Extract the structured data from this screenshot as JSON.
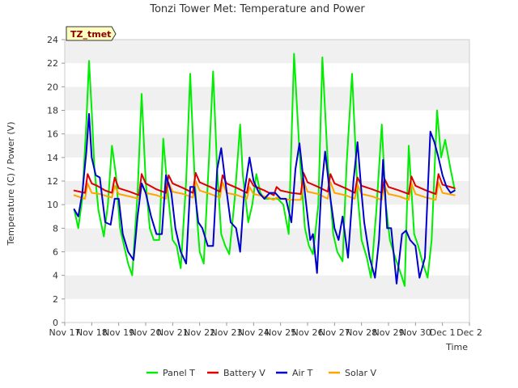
{
  "chart_data": {
    "type": "line",
    "title": "Tonzi Tower Met: Temperature and Power",
    "xlabel": "Time",
    "ylabel": "Temperature (C) / Power (V)",
    "ylim": [
      0,
      24
    ],
    "yticks": [
      "0",
      "2",
      "4",
      "6",
      "8",
      "10",
      "12",
      "14",
      "16",
      "18",
      "20",
      "22",
      "24"
    ],
    "xlim": [
      0,
      15
    ],
    "xticks": [
      "Nov 17",
      "Nov 18",
      "Nov 19",
      "Nov 20",
      "Nov 21",
      "Nov 22",
      "Nov 23",
      "Nov 24",
      "Nov 25",
      "Nov 26",
      "Nov 27",
      "Nov 28",
      "Nov 29",
      "Nov 30",
      "Dec 1",
      "Dec 2"
    ],
    "grid": "horizontal bands",
    "legend_position": "bottom",
    "tag": "TZ_tmet",
    "series": [
      {
        "name": "Panel T",
        "color": "#00ee00",
        "x": [
          0.35,
          0.5,
          0.65,
          0.8,
          0.9,
          1.0,
          1.1,
          1.25,
          1.45,
          1.6,
          1.75,
          1.9,
          2.05,
          2.2,
          2.35,
          2.5,
          2.7,
          2.85,
          3.0,
          3.15,
          3.3,
          3.5,
          3.65,
          3.8,
          4.0,
          4.15,
          4.3,
          4.5,
          4.65,
          4.8,
          4.9,
          5.0,
          5.15,
          5.35,
          5.5,
          5.65,
          5.8,
          5.95,
          6.1,
          6.3,
          6.5,
          6.6,
          6.8,
          6.95,
          7.1,
          7.25,
          7.4,
          7.6,
          7.75,
          7.9,
          8.1,
          8.3,
          8.5,
          8.7,
          8.9,
          9.05,
          9.2,
          9.4,
          9.55,
          9.75,
          9.95,
          10.1,
          10.3,
          10.45,
          10.65,
          10.85,
          11.0,
          11.2,
          11.35,
          11.55,
          11.75,
          11.9,
          12.05,
          12.25,
          12.45,
          12.6,
          12.75,
          12.95,
          13.1,
          13.25,
          13.45,
          13.6,
          13.8,
          13.95,
          14.1,
          14.3,
          14.45
        ],
        "y": [
          9.6,
          8.0,
          10.5,
          17.0,
          22.2,
          18.0,
          13.0,
          9.5,
          7.3,
          10.0,
          15.0,
          12.5,
          8.0,
          6.5,
          5.0,
          4.0,
          11.0,
          19.4,
          12.0,
          8.0,
          7.0,
          7.0,
          15.6,
          11.5,
          7.0,
          6.5,
          4.6,
          12.0,
          21.1,
          13.0,
          9.0,
          6.0,
          5.0,
          14.0,
          21.3,
          13.0,
          7.5,
          6.5,
          5.8,
          10.5,
          16.8,
          12.5,
          8.5,
          10.0,
          12.6,
          11.0,
          10.5,
          10.5,
          10.5,
          10.5,
          10.0,
          7.5,
          22.8,
          14.5,
          8.0,
          6.5,
          5.8,
          10.0,
          22.5,
          13.5,
          7.5,
          6.0,
          5.2,
          13.5,
          21.1,
          11.0,
          7.0,
          5.5,
          3.8,
          9.5,
          16.8,
          10.0,
          7.0,
          5.5,
          4.2,
          3.1,
          15.0,
          7.5,
          6.5,
          5.2,
          3.8,
          7.0,
          18.0,
          14.0,
          15.5,
          13.0,
          11.3
        ]
      },
      {
        "name": "Battery V",
        "color": "#dd0000",
        "x": [
          0.35,
          0.75,
          0.85,
          1.0,
          1.2,
          1.5,
          1.75,
          1.85,
          2.0,
          2.4,
          2.75,
          2.85,
          3.0,
          3.4,
          3.75,
          3.85,
          4.0,
          4.4,
          4.75,
          4.85,
          5.0,
          5.4,
          5.75,
          5.85,
          6.0,
          6.4,
          6.75,
          6.85,
          7.0,
          7.4,
          7.75,
          7.85,
          8.0,
          8.4,
          8.75,
          8.85,
          9.0,
          9.4,
          9.75,
          9.85,
          10.0,
          10.4,
          10.75,
          10.85,
          11.0,
          11.4,
          11.75,
          11.85,
          12.0,
          12.4,
          12.75,
          12.85,
          13.0,
          13.4,
          13.75,
          13.85,
          14.0,
          14.45
        ],
        "y": [
          11.2,
          11.0,
          12.6,
          11.8,
          11.6,
          11.2,
          11.0,
          12.3,
          11.4,
          11.1,
          10.8,
          12.6,
          11.8,
          11.3,
          11.0,
          12.5,
          11.8,
          11.4,
          11.0,
          12.7,
          11.9,
          11.5,
          11.1,
          12.5,
          11.8,
          11.4,
          11.0,
          12.2,
          11.6,
          11.2,
          10.8,
          11.5,
          11.2,
          11.0,
          10.9,
          12.7,
          11.9,
          11.5,
          11.1,
          12.6,
          11.8,
          11.4,
          11.0,
          12.3,
          11.6,
          11.3,
          11.0,
          12.2,
          11.5,
          11.2,
          10.9,
          12.4,
          11.6,
          11.2,
          10.9,
          12.6,
          11.7,
          11.4
        ]
      },
      {
        "name": "Air T",
        "color": "#0000cc",
        "x": [
          0.35,
          0.5,
          0.65,
          0.8,
          0.9,
          1.0,
          1.15,
          1.3,
          1.5,
          1.7,
          1.85,
          2.0,
          2.15,
          2.35,
          2.55,
          2.7,
          2.85,
          3.0,
          3.2,
          3.4,
          3.6,
          3.75,
          3.95,
          4.1,
          4.3,
          4.5,
          4.65,
          4.8,
          4.95,
          5.1,
          5.3,
          5.5,
          5.65,
          5.8,
          5.95,
          6.15,
          6.35,
          6.5,
          6.65,
          6.85,
          7.0,
          7.2,
          7.4,
          7.6,
          7.8,
          8.0,
          8.2,
          8.4,
          8.55,
          8.7,
          8.9,
          9.1,
          9.2,
          9.35,
          9.5,
          9.65,
          9.85,
          10.0,
          10.15,
          10.3,
          10.5,
          10.7,
          10.85,
          11.0,
          11.1,
          11.3,
          11.5,
          11.65,
          11.8,
          11.95,
          12.1,
          12.3,
          12.5,
          12.65,
          12.8,
          13.0,
          13.15,
          13.35,
          13.55,
          13.7,
          13.85,
          14.0,
          14.15,
          14.3,
          14.45
        ],
        "y": [
          9.6,
          9.0,
          11.0,
          14.5,
          17.7,
          14.0,
          12.5,
          12.3,
          8.5,
          8.3,
          10.5,
          10.5,
          7.5,
          6.0,
          5.3,
          9.0,
          11.8,
          11.0,
          9.0,
          7.5,
          7.5,
          12.5,
          11.0,
          8.0,
          6.0,
          5.0,
          11.5,
          11.5,
          8.5,
          8.0,
          6.5,
          6.5,
          13.0,
          14.8,
          12.0,
          8.5,
          8.0,
          6.0,
          11.0,
          14.0,
          12.0,
          11.0,
          10.5,
          11.0,
          11.0,
          10.5,
          10.5,
          8.5,
          13.0,
          15.2,
          11.0,
          7.0,
          7.5,
          4.2,
          11.0,
          14.5,
          10.5,
          8.0,
          7.0,
          9.0,
          5.5,
          12.0,
          15.3,
          11.0,
          8.5,
          5.5,
          3.8,
          7.0,
          13.8,
          8.0,
          8.0,
          3.3,
          7.5,
          7.8,
          7.0,
          6.5,
          3.8,
          5.5,
          16.2,
          15.3,
          14.0,
          12.5,
          11.5,
          11.0,
          11.2
        ]
      },
      {
        "name": "Solar V",
        "color": "#ffa500",
        "x": [
          0.35,
          0.75,
          0.85,
          1.0,
          1.3,
          1.6,
          1.75,
          1.85,
          2.0,
          2.4,
          2.75,
          2.85,
          3.0,
          3.4,
          3.75,
          3.85,
          4.0,
          4.4,
          4.75,
          4.85,
          5.0,
          5.4,
          5.75,
          5.85,
          6.0,
          6.4,
          6.75,
          6.85,
          7.0,
          7.4,
          7.75,
          7.85,
          8.0,
          8.4,
          8.75,
          8.85,
          9.0,
          9.4,
          9.75,
          9.85,
          10.0,
          10.4,
          10.75,
          10.85,
          11.0,
          11.4,
          11.75,
          11.85,
          12.0,
          12.4,
          12.75,
          12.85,
          13.0,
          13.4,
          13.75,
          13.85,
          14.0,
          14.45
        ],
        "y": [
          10.8,
          10.5,
          11.8,
          11.0,
          10.9,
          10.7,
          10.6,
          11.6,
          10.9,
          10.7,
          10.5,
          11.8,
          11.0,
          10.8,
          10.5,
          11.9,
          11.1,
          10.9,
          10.6,
          12.0,
          11.2,
          10.9,
          10.6,
          11.9,
          11.0,
          10.8,
          10.5,
          11.5,
          10.9,
          10.7,
          10.4,
          10.6,
          10.5,
          10.4,
          10.4,
          12.0,
          11.1,
          10.9,
          10.5,
          11.9,
          11.0,
          10.8,
          10.5,
          11.7,
          10.9,
          10.7,
          10.4,
          11.6,
          10.9,
          10.7,
          10.4,
          11.8,
          10.9,
          10.6,
          10.4,
          11.9,
          11.0,
          10.8
        ]
      }
    ]
  }
}
